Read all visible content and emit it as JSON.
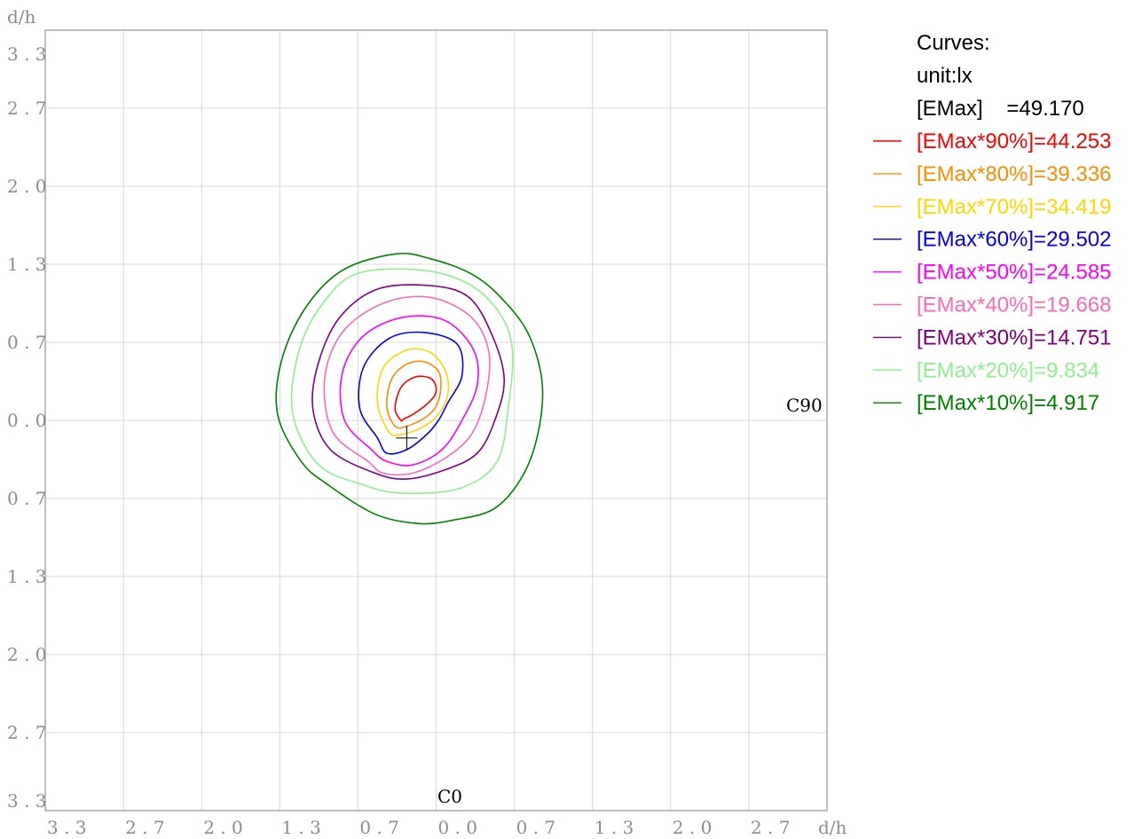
{
  "chart_data": {
    "type": "contour",
    "x_axis_unit": "d/h",
    "y_axis_unit": "d/h",
    "x_ticks": [
      "3.3",
      "2.7",
      "2.0",
      "1.3",
      "0.7",
      "0.0",
      "0.7",
      "1.3",
      "2.0",
      "2.7"
    ],
    "y_ticks": [
      "3.3",
      "2.7",
      "2.0",
      "1.3",
      "0.7",
      "0.0",
      "0.7",
      "1.3",
      "2.0",
      "2.7",
      "3.3"
    ],
    "xlim": [
      -3.33,
      3.33
    ],
    "ylim": [
      -3.33,
      3.33
    ],
    "grid": true,
    "plane_labels": {
      "c0": "C0",
      "c90": "C90"
    },
    "center_marker": [
      -0.25,
      -0.15
    ],
    "legend": {
      "title": "Curves:",
      "unit": "unit:lx",
      "emax": "[EMax]    =49.170",
      "placement": "top-right"
    },
    "series": [
      {
        "name": "[EMax*90%]=44.253",
        "color": "#ff0000",
        "shape": [
          [
            -0.3,
            0.0
          ],
          [
            -0.35,
            0.1
          ],
          [
            -0.3,
            0.28
          ],
          [
            -0.18,
            0.37
          ],
          [
            -0.05,
            0.36
          ],
          [
            0.0,
            0.28
          ],
          [
            -0.02,
            0.2
          ],
          [
            -0.1,
            0.12
          ],
          [
            -0.2,
            0.05
          ],
          [
            -0.28,
            0.01
          ]
        ]
      },
      {
        "name": "[EMax*80%]=39.336",
        "color": "#ff8c00",
        "shape": [
          [
            -0.35,
            -0.05
          ],
          [
            -0.42,
            0.12
          ],
          [
            -0.38,
            0.35
          ],
          [
            -0.25,
            0.48
          ],
          [
            -0.1,
            0.5
          ],
          [
            0.02,
            0.42
          ],
          [
            0.04,
            0.28
          ],
          [
            0.0,
            0.12
          ],
          [
            -0.1,
            0.02
          ],
          [
            -0.25,
            -0.05
          ]
        ]
      },
      {
        "name": "[EMax*70%]=34.419",
        "color": "#ffd700",
        "shape": [
          [
            -0.4,
            -0.1
          ],
          [
            -0.5,
            0.15
          ],
          [
            -0.45,
            0.45
          ],
          [
            -0.25,
            0.6
          ],
          [
            -0.05,
            0.58
          ],
          [
            0.08,
            0.42
          ],
          [
            0.1,
            0.22
          ],
          [
            0.02,
            0.05
          ],
          [
            -0.12,
            -0.06
          ],
          [
            -0.3,
            -0.12
          ]
        ]
      },
      {
        "name": "[EMax*60%]=29.502",
        "color": "#0000ff",
        "shape": [
          [
            -0.5,
            -0.15
          ],
          [
            -0.65,
            0.1
          ],
          [
            -0.62,
            0.45
          ],
          [
            -0.4,
            0.7
          ],
          [
            -0.1,
            0.75
          ],
          [
            0.18,
            0.65
          ],
          [
            0.22,
            0.38
          ],
          [
            0.1,
            0.15
          ],
          [
            0.02,
            0.0
          ],
          [
            -0.08,
            -0.12
          ],
          [
            -0.25,
            -0.25
          ],
          [
            -0.42,
            -0.28
          ]
        ]
      },
      {
        "name": "[EMax*50%]=24.585",
        "color": "#ff00ff",
        "shape": [
          [
            -0.55,
            -0.25
          ],
          [
            -0.78,
            0.0
          ],
          [
            -0.8,
            0.4
          ],
          [
            -0.62,
            0.72
          ],
          [
            -0.28,
            0.88
          ],
          [
            0.08,
            0.85
          ],
          [
            0.32,
            0.6
          ],
          [
            0.35,
            0.3
          ],
          [
            0.22,
            0.0
          ],
          [
            0.05,
            -0.25
          ],
          [
            -0.2,
            -0.38
          ],
          [
            -0.42,
            -0.35
          ]
        ]
      },
      {
        "name": "[EMax*40%]=19.668",
        "color": "#ff69b4",
        "shape": [
          [
            -0.58,
            -0.35
          ],
          [
            -0.88,
            -0.1
          ],
          [
            -0.95,
            0.35
          ],
          [
            -0.8,
            0.75
          ],
          [
            -0.45,
            1.0
          ],
          [
            -0.05,
            1.05
          ],
          [
            0.3,
            0.88
          ],
          [
            0.45,
            0.58
          ],
          [
            0.42,
            0.2
          ],
          [
            0.3,
            -0.12
          ],
          [
            0.08,
            -0.32
          ],
          [
            -0.2,
            -0.45
          ],
          [
            -0.45,
            -0.45
          ]
        ]
      },
      {
        "name": "[EMax*30%]=14.751",
        "color": "#800080",
        "shape": [
          [
            -0.52,
            -0.45
          ],
          [
            -0.9,
            -0.25
          ],
          [
            -1.05,
            0.1
          ],
          [
            -1.0,
            0.5
          ],
          [
            -0.82,
            0.88
          ],
          [
            -0.5,
            1.12
          ],
          [
            -0.05,
            1.15
          ],
          [
            0.28,
            1.05
          ],
          [
            0.48,
            0.72
          ],
          [
            0.58,
            0.35
          ],
          [
            0.5,
            0.0
          ],
          [
            0.35,
            -0.28
          ],
          [
            0.08,
            -0.42
          ],
          [
            -0.25,
            -0.5
          ]
        ]
      },
      {
        "name": "[EMax*20%]=9.834",
        "color": "#90ee90",
        "shape": [
          [
            -0.62,
            -0.55
          ],
          [
            -1.0,
            -0.38
          ],
          [
            -1.22,
            0.05
          ],
          [
            -1.18,
            0.55
          ],
          [
            -1.0,
            0.95
          ],
          [
            -0.68,
            1.25
          ],
          [
            -0.1,
            1.28
          ],
          [
            0.3,
            1.15
          ],
          [
            0.55,
            0.9
          ],
          [
            0.65,
            0.6
          ],
          [
            0.62,
            0.15
          ],
          [
            0.52,
            -0.35
          ],
          [
            0.2,
            -0.58
          ],
          [
            -0.3,
            -0.62
          ]
        ]
      },
      {
        "name": "[EMax*10%]=4.917",
        "color": "#008000",
        "shape": [
          [
            -0.92,
            -0.55
          ],
          [
            -1.15,
            -0.35
          ],
          [
            -1.35,
            0.05
          ],
          [
            -1.32,
            0.5
          ],
          [
            -1.12,
            0.95
          ],
          [
            -0.8,
            1.28
          ],
          [
            -0.35,
            1.42
          ],
          [
            -0.05,
            1.38
          ],
          [
            0.3,
            1.25
          ],
          [
            0.55,
            1.05
          ],
          [
            0.78,
            0.75
          ],
          [
            0.9,
            0.35
          ],
          [
            0.88,
            -0.05
          ],
          [
            0.75,
            -0.45
          ],
          [
            0.5,
            -0.75
          ],
          [
            0.15,
            -0.85
          ],
          [
            -0.15,
            -0.88
          ],
          [
            -0.52,
            -0.8
          ]
        ]
      }
    ]
  }
}
